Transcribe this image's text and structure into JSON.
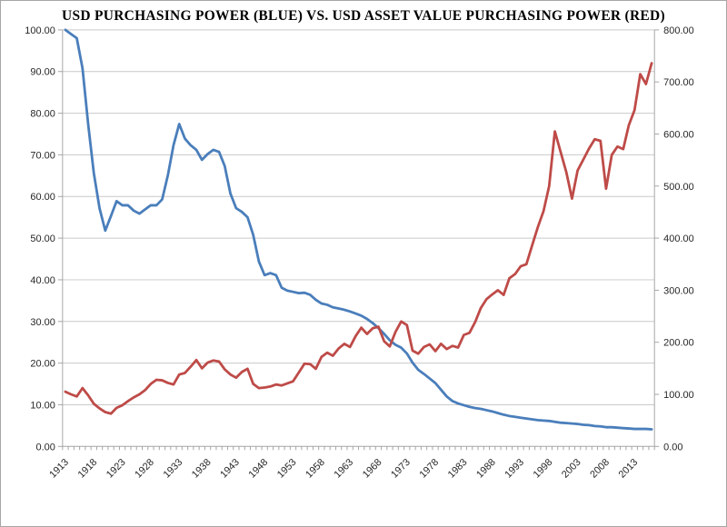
{
  "chart_data": {
    "type": "line",
    "title": "USD PURCHASING POWER (BLUE) VS. USD ASSET VALUE PURCHASING POWER (RED)",
    "legend": "none",
    "grid": "horizontal",
    "categories": [
      1913,
      1914,
      1915,
      1916,
      1917,
      1918,
      1919,
      1920,
      1921,
      1922,
      1923,
      1924,
      1925,
      1926,
      1927,
      1928,
      1929,
      1930,
      1931,
      1932,
      1933,
      1934,
      1935,
      1936,
      1937,
      1938,
      1939,
      1940,
      1941,
      1942,
      1943,
      1944,
      1945,
      1946,
      1947,
      1948,
      1949,
      1950,
      1951,
      1952,
      1953,
      1954,
      1955,
      1956,
      1957,
      1958,
      1959,
      1960,
      1961,
      1962,
      1963,
      1964,
      1965,
      1966,
      1967,
      1968,
      1969,
      1970,
      1971,
      1972,
      1973,
      1974,
      1975,
      1976,
      1977,
      1978,
      1979,
      1980,
      1981,
      1982,
      1983,
      1984,
      1985,
      1986,
      1987,
      1988,
      1989,
      1990,
      1991,
      1992,
      1993,
      1994,
      1995,
      1996,
      1997,
      1998,
      1999,
      2000,
      2001,
      2002,
      2003,
      2004,
      2005,
      2006,
      2007,
      2008,
      2009,
      2010,
      2011,
      2012,
      2013,
      2014,
      2015,
      2016
    ],
    "series": [
      {
        "name": "USD Purchasing Power (blue)",
        "axis": "left",
        "color": "#4a7ebb",
        "values": [
          100.0,
          99.0,
          98.0,
          90.8,
          77.3,
          65.6,
          57.2,
          51.8,
          55.3,
          58.9,
          57.9,
          57.9,
          56.6,
          55.9,
          56.9,
          57.9,
          57.9,
          59.3,
          65.1,
          72.3,
          77.4,
          73.9,
          72.3,
          71.2,
          68.8,
          70.2,
          71.2,
          70.7,
          67.3,
          60.7,
          57.2,
          56.3,
          55.0,
          50.8,
          44.4,
          41.1,
          41.6,
          41.1,
          38.1,
          37.4,
          37.1,
          36.8,
          36.9,
          36.4,
          35.2,
          34.3,
          34.0,
          33.4,
          33.1,
          32.8,
          32.4,
          31.9,
          31.4,
          30.6,
          29.6,
          28.4,
          27.0,
          25.5,
          24.4,
          23.7,
          22.3,
          20.1,
          18.4,
          17.4,
          16.3,
          15.2,
          13.6,
          12.0,
          10.9,
          10.3,
          9.9,
          9.5,
          9.2,
          9.0,
          8.7,
          8.4,
          8.0,
          7.6,
          7.3,
          7.1,
          6.9,
          6.7,
          6.5,
          6.3,
          6.2,
          6.1,
          5.9,
          5.7,
          5.6,
          5.5,
          5.4,
          5.2,
          5.1,
          4.9,
          4.8,
          4.6,
          4.6,
          4.5,
          4.4,
          4.3,
          4.2,
          4.2,
          4.2,
          4.1
        ]
      },
      {
        "name": "USD Asset Value Purchasing Power (red)",
        "axis": "right",
        "color": "#be4b48",
        "values": [
          105,
          100,
          96,
          112,
          98,
          82,
          73,
          66,
          63,
          74,
          79,
          87,
          94,
          100,
          108,
          120,
          128,
          127,
          122,
          119,
          138,
          141,
          153,
          166,
          150,
          161,
          165,
          163,
          148,
          138,
          132,
          143,
          149,
          120,
          112,
          113,
          115,
          119,
          117,
          121,
          125,
          142,
          159,
          158,
          149,
          172,
          180,
          174,
          188,
          197,
          191,
          212,
          228,
          216,
          227,
          230,
          202,
          192,
          220,
          240,
          233,
          184,
          178,
          191,
          196,
          183,
          197,
          187,
          193,
          190,
          214,
          218,
          239,
          266,
          283,
          292,
          300,
          291,
          323,
          331,
          346,
          350,
          386,
          421,
          452,
          500,
          605,
          566,
          527,
          476,
          530,
          551,
          572,
          590,
          587,
          495,
          560,
          576,
          571,
          617,
          646,
          715,
          696,
          736
        ]
      }
    ],
    "axes": {
      "left": {
        "min": 0,
        "max": 100,
        "step": 10,
        "tick_labels": [
          "0.00",
          "10.00",
          "20.00",
          "30.00",
          "40.00",
          "50.00",
          "60.00",
          "70.00",
          "80.00",
          "90.00",
          "100.00"
        ]
      },
      "right": {
        "min": 0,
        "max": 800,
        "step": 100,
        "tick_labels": [
          "0.00",
          "100.00",
          "200.00",
          "300.00",
          "400.00",
          "500.00",
          "600.00",
          "700.00",
          "800.00"
        ]
      },
      "x": {
        "label_every": 5,
        "labels": [
          "1913",
          "1918",
          "1923",
          "1928",
          "1933",
          "1938",
          "1943",
          "1948",
          "1953",
          "1958",
          "1963",
          "1968",
          "1973",
          "1978",
          "1983",
          "1988",
          "1993",
          "1998",
          "2003",
          "2008",
          "2013"
        ]
      }
    },
    "colors": {
      "gridline": "#c9c9c9",
      "axis_line": "#a6a6a6",
      "tick": "#a6a6a6",
      "label_text": "#262626",
      "title_text": "#000000",
      "background": "#ffffff",
      "border": "#a6a6a6"
    }
  }
}
